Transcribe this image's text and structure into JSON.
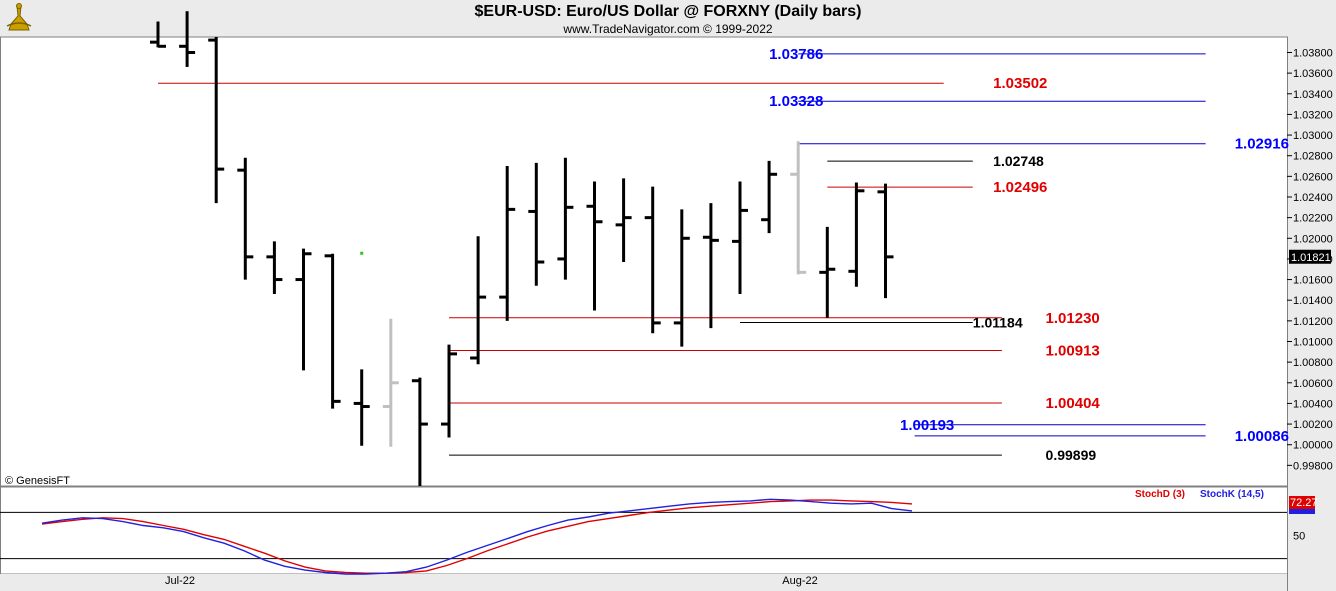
{
  "header": {
    "title": "$EUR-USD:  Euro/US Dollar @ FORXNY  (Daily bars)",
    "subtitle": "www.TradeNavigator.com © 1999-2022"
  },
  "copyright": "© GenesisFT",
  "chart_data": {
    "type": "ohlc",
    "y_range": [
      0.996,
      1.0395
    ],
    "y_ticks": [
      "1.03800",
      "1.03600",
      "1.03400",
      "1.03200",
      "1.03000",
      "1.02800",
      "1.02600",
      "1.02400",
      "1.02200",
      "1.02000",
      "1.01800",
      "1.01600",
      "1.01400",
      "1.01200",
      "1.01000",
      "1.00800",
      "1.00600",
      "1.00400",
      "1.00200",
      "1.00000",
      "0.99800"
    ],
    "last_price_label": "1.01821",
    "last_price": 1.01821,
    "x_labels": [
      "Jul-22",
      "Aug-22"
    ],
    "bar_color": "#000000",
    "ghost_bar_color": "#c0c0c0",
    "bars": [
      {
        "h": 1.041,
        "l": 1.0385,
        "o": 1.039,
        "c": 1.0386
      },
      {
        "h": 1.042,
        "l": 1.0366,
        "o": 1.0386,
        "c": 1.038
      },
      {
        "h": 1.0395,
        "l": 1.0234,
        "o": 1.0392,
        "c": 1.0267
      },
      {
        "h": 1.0278,
        "l": 1.016,
        "o": 1.0266,
        "c": 1.0182
      },
      {
        "h": 1.0197,
        "l": 1.0146,
        "o": 1.0182,
        "c": 1.016
      },
      {
        "h": 1.019,
        "l": 1.0072,
        "o": 1.016,
        "c": 1.0185
      },
      {
        "h": 1.0185,
        "l": 1.0035,
        "o": 1.0183,
        "c": 1.0042
      },
      {
        "h": 1.0073,
        "l": 0.9999,
        "o": 1.004,
        "c": 1.0037
      },
      {
        "h": 1.0122,
        "l": 0.9998,
        "o": 1.0037,
        "c": 1.006,
        "ghost": true
      },
      {
        "h": 1.0065,
        "l": 0.9952,
        "o": 1.0062,
        "c": 1.002
      },
      {
        "h": 1.0097,
        "l": 1.0007,
        "o": 1.002,
        "c": 1.0088
      },
      {
        "h": 1.0202,
        "l": 1.0078,
        "o": 1.0084,
        "c": 1.0143
      },
      {
        "h": 1.027,
        "l": 1.012,
        "o": 1.0143,
        "c": 1.0228
      },
      {
        "h": 1.0273,
        "l": 1.0154,
        "o": 1.0226,
        "c": 1.0177
      },
      {
        "h": 1.0278,
        "l": 1.016,
        "o": 1.018,
        "c": 1.023
      },
      {
        "h": 1.0255,
        "l": 1.013,
        "o": 1.0231,
        "c": 1.0216
      },
      {
        "h": 1.0258,
        "l": 1.0177,
        "o": 1.0213,
        "c": 1.022
      },
      {
        "h": 1.025,
        "l": 1.0108,
        "o": 1.022,
        "c": 1.0118
      },
      {
        "h": 1.0228,
        "l": 1.0095,
        "o": 1.0118,
        "c": 1.02
      },
      {
        "h": 1.0234,
        "l": 1.0113,
        "o": 1.0201,
        "c": 1.0198
      },
      {
        "h": 1.0255,
        "l": 1.0146,
        "o": 1.0197,
        "c": 1.0227
      },
      {
        "h": 1.0275,
        "l": 1.0205,
        "o": 1.0218,
        "c": 1.0262
      },
      {
        "h": 1.0294,
        "l": 1.0165,
        "o": 1.0262,
        "c": 1.0167,
        "ghost": true
      },
      {
        "h": 1.0211,
        "l": 1.0123,
        "o": 1.0167,
        "c": 1.017
      },
      {
        "h": 1.0254,
        "l": 1.0153,
        "o": 1.0168,
        "c": 1.0246
      },
      {
        "h": 1.0253,
        "l": 1.0142,
        "o": 1.0245,
        "c": 1.0182
      }
    ],
    "levels": [
      {
        "value": 1.03786,
        "label": "1.03786",
        "color": "#0000cc",
        "label_color": "#0000ff",
        "from_bar": 22,
        "to_bar": 36,
        "label_bar": 21
      },
      {
        "value": 1.03502,
        "label": "1.03502",
        "color": "#cc0000",
        "label_color": "#e00000",
        "from_bar": 0,
        "to_bar": 27,
        "label_bar": 28.7
      },
      {
        "value": 1.03328,
        "label": "1.03328",
        "color": "#0000cc",
        "label_color": "#0000ff",
        "from_bar": 22,
        "to_bar": 36,
        "label_bar": 21
      },
      {
        "value": 1.02916,
        "label": "1.02916",
        "color": "#0000cc",
        "label_color": "#0000ff",
        "from_bar": 22,
        "to_bar": 36,
        "label_bar": 37
      },
      {
        "value": 1.02748,
        "label": "1.02748",
        "color": "#000000",
        "label_color": "#000000",
        "from_bar": 23,
        "to_bar": 28,
        "label_bar": 28.7
      },
      {
        "value": 1.02496,
        "label": "1.02496",
        "color": "#cc0000",
        "label_color": "#e00000",
        "from_bar": 23,
        "to_bar": 28,
        "label_bar": 28.7
      },
      {
        "value": 1.0123,
        "label": "1.01230",
        "color": "#cc0000",
        "label_color": "#e00000",
        "from_bar": 10,
        "to_bar": 29,
        "label_bar": 30.5
      },
      {
        "value": 1.01184,
        "label": "1.01184",
        "color": "#000000",
        "label_color": "#000000",
        "from_bar": 20,
        "to_bar": 28,
        "label_bar": 28
      },
      {
        "value": 1.00913,
        "label": "1.00913",
        "color": "#cc0000",
        "label_color": "#e00000",
        "from_bar": 10,
        "to_bar": 29,
        "label_bar": 30.5
      },
      {
        "value": 1.00404,
        "label": "1.00404",
        "color": "#cc0000",
        "label_color": "#e00000",
        "from_bar": 10,
        "to_bar": 29,
        "label_bar": 30.5
      },
      {
        "value": 1.00193,
        "label": "1.00193",
        "color": "#0000cc",
        "label_color": "#0000ff",
        "from_bar": 26,
        "to_bar": 36,
        "label_bar": 25.5
      },
      {
        "value": 1.00086,
        "label": "1.00086",
        "color": "#0000cc",
        "label_color": "#0000ff",
        "from_bar": 26,
        "to_bar": 36,
        "label_bar": 37
      },
      {
        "value": 0.99899,
        "label": "0.99899",
        "color": "#000000",
        "label_color": "#000000",
        "from_bar": 10,
        "to_bar": 29,
        "label_bar": 30.5
      }
    ],
    "indicator": {
      "legend": [
        {
          "name": "StochD (3)",
          "color": "#e00000"
        },
        {
          "name": "StochK (14,5)",
          "color": "#2020e0"
        }
      ],
      "y_range": [
        0,
        100
      ],
      "ticks": [
        "50"
      ],
      "reference_lines": [
        80,
        20
      ],
      "value_box": "72.27",
      "value_box_color": "#e00000",
      "stoch_d": [
        65,
        68,
        71,
        73,
        72,
        68,
        63,
        58,
        51,
        45,
        36,
        27,
        17,
        9,
        4,
        2,
        1,
        1,
        2,
        4,
        11,
        20,
        30,
        39,
        48,
        56,
        62,
        68,
        72,
        76,
        80,
        83,
        86,
        88,
        90,
        92,
        94,
        95,
        96,
        96,
        95,
        94,
        93,
        91
      ],
      "stoch_k": [
        66,
        70,
        73,
        72,
        68,
        63,
        60,
        55,
        47,
        40,
        30,
        18,
        10,
        5,
        2,
        0,
        0,
        1,
        3,
        9,
        18,
        28,
        37,
        46,
        55,
        63,
        70,
        74,
        79,
        82,
        85,
        88,
        91,
        93,
        94,
        95,
        97,
        96,
        94,
        92,
        91,
        92,
        85,
        82
      ]
    }
  }
}
